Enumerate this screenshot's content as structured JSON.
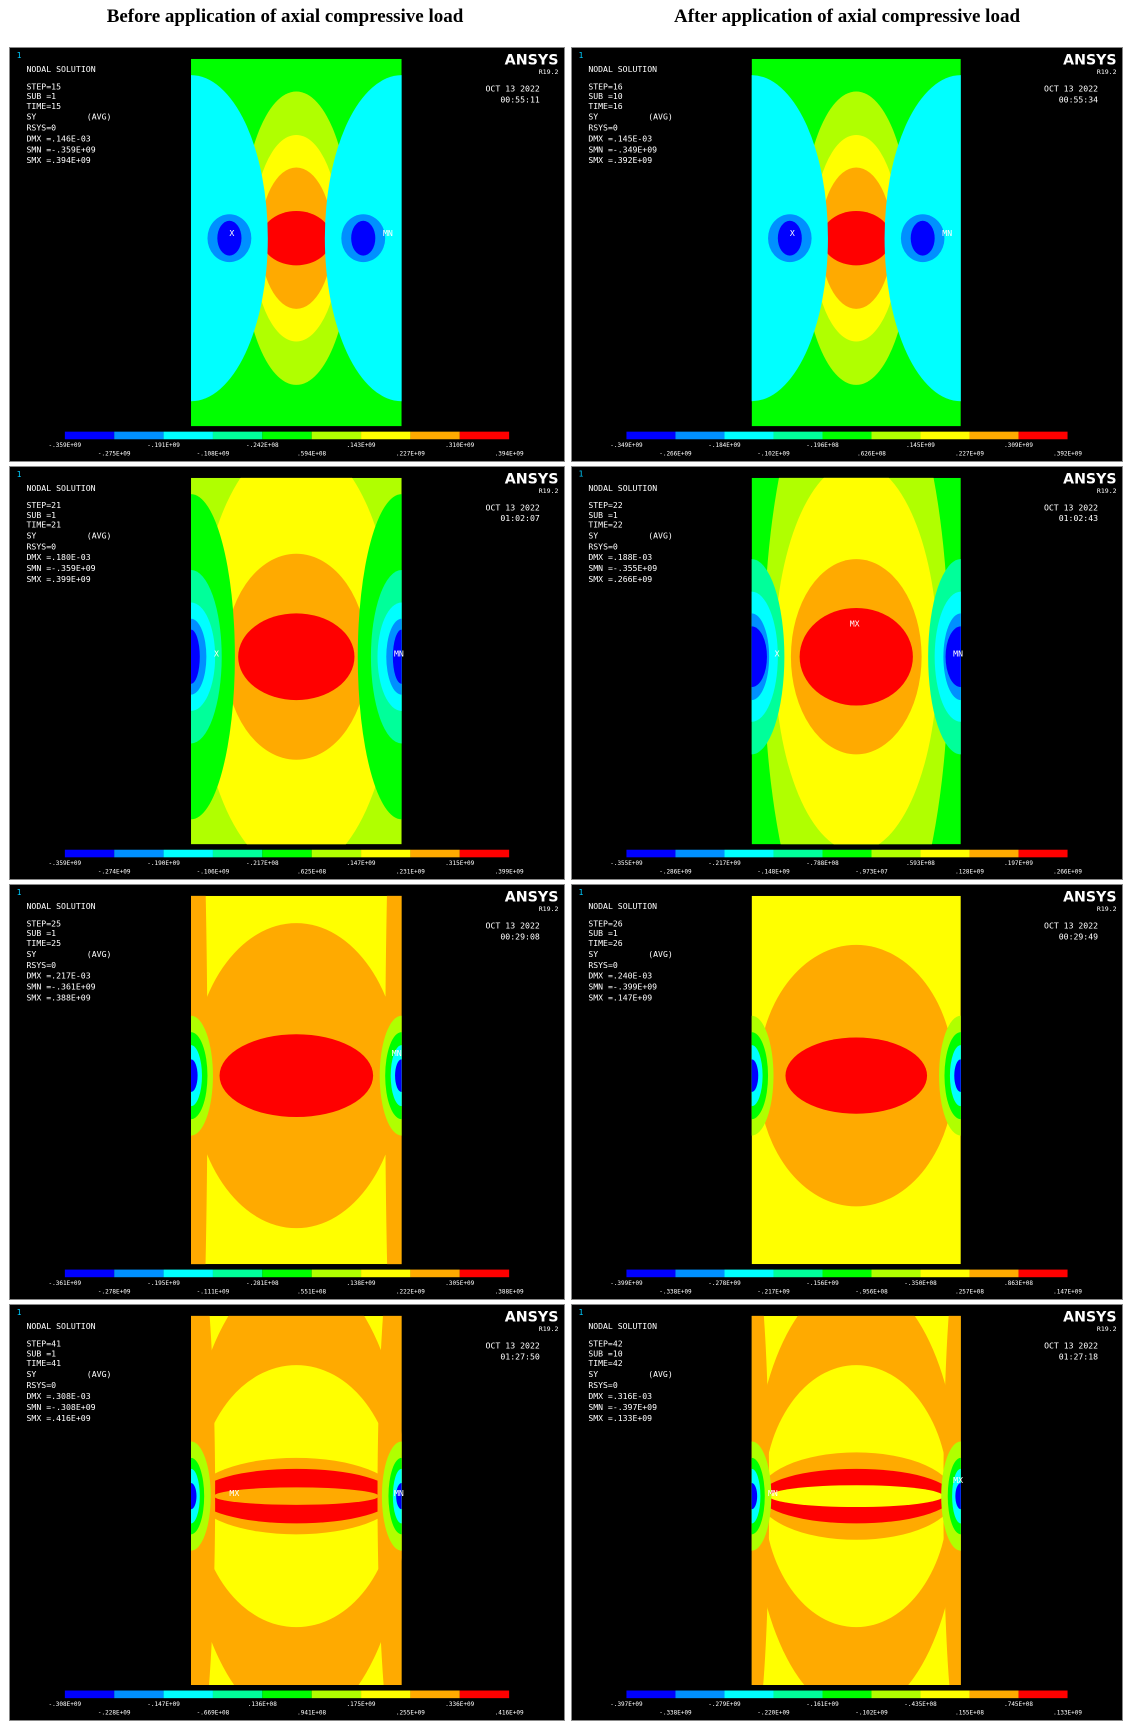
{
  "header": {
    "left_title": "Before application of axial compressive load",
    "right_title": "After application of axial compressive load"
  },
  "panels": [
    {
      "window_number": "1",
      "title": "NODAL SOLUTION",
      "step": "STEP=15",
      "sub": "SUB =1",
      "time": "TIME=15",
      "quantity": "SY",
      "averaging": "(AVG)",
      "rsys": "RSYS=0",
      "dmx": "DMX =.146E-03",
      "smn": "SMN =-.359E+09",
      "smx": "SMX =.394E+09",
      "brand": "ANSYS",
      "version": "R19.2",
      "date": "OCT 13 2022",
      "clock": "00:55:11",
      "markers": [
        "X",
        "MN"
      ],
      "legend": [
        "-.359E+09",
        "-.275E+09",
        "-.191E+09",
        "-.108E+09",
        "-.242E+08",
        ".594E+08",
        ".143E+09",
        ".227E+09",
        ".310E+09",
        ".394E+09"
      ]
    },
    {
      "window_number": "1",
      "title": "NODAL SOLUTION",
      "step": "STEP=16",
      "sub": "SUB =10",
      "time": "TIME=16",
      "quantity": "SY",
      "averaging": "(AVG)",
      "rsys": "RSYS=0",
      "dmx": "DMX =.145E-03",
      "smn": "SMN =-.349E+09",
      "smx": "SMX =.392E+09",
      "brand": "ANSYS",
      "version": "R19.2",
      "date": "OCT 13 2022",
      "clock": "00:55:34",
      "markers": [
        "X",
        "MN"
      ],
      "legend": [
        "-.349E+09",
        "-.266E+09",
        "-.184E+09",
        "-.102E+09",
        "-.196E+08",
        ".626E+08",
        ".145E+09",
        ".227E+09",
        ".309E+09",
        ".392E+09"
      ]
    },
    {
      "window_number": "1",
      "title": "NODAL SOLUTION",
      "step": "STEP=21",
      "sub": "SUB =1",
      "time": "TIME=21",
      "quantity": "SY",
      "averaging": "(AVG)",
      "rsys": "RSYS=0",
      "dmx": "DMX =.180E-03",
      "smn": "SMN =-.359E+09",
      "smx": "SMX =.399E+09",
      "brand": "ANSYS",
      "version": "R19.2",
      "date": "OCT 13 2022",
      "clock": "01:02:07",
      "markers": [
        "X",
        "MN"
      ],
      "legend": [
        "-.359E+09",
        "-.274E+09",
        "-.190E+09",
        "-.106E+09",
        "-.217E+08",
        ".625E+08",
        ".147E+09",
        ".231E+09",
        ".315E+09",
        ".399E+09"
      ]
    },
    {
      "window_number": "1",
      "title": "NODAL SOLUTION",
      "step": "STEP=22",
      "sub": "SUB =1",
      "time": "TIME=22",
      "quantity": "SY",
      "averaging": "(AVG)",
      "rsys": "RSYS=0",
      "dmx": "DMX =.188E-03",
      "smn": "SMN =-.355E+09",
      "smx": "SMX =.266E+09",
      "brand": "ANSYS",
      "version": "R19.2",
      "date": "OCT 13 2022",
      "clock": "01:02:43",
      "markers": [
        "X",
        "MX",
        "MN"
      ],
      "legend": [
        "-.355E+09",
        "-.286E+09",
        "-.217E+09",
        "-.148E+09",
        "-.788E+08",
        "-.973E+07",
        ".593E+08",
        ".128E+09",
        ".197E+09",
        ".266E+09"
      ]
    },
    {
      "window_number": "1",
      "title": "NODAL SOLUTION",
      "step": "STEP=25",
      "sub": "SUB =1",
      "time": "TIME=25",
      "quantity": "SY",
      "averaging": "(AVG)",
      "rsys": "RSYS=0",
      "dmx": "DMX =.217E-03",
      "smn": "SMN =-.361E+09",
      "smx": "SMX =.388E+09",
      "brand": "ANSYS",
      "version": "R19.2",
      "date": "OCT 13 2022",
      "clock": "00:29:08",
      "markers": [
        "MN"
      ],
      "legend": [
        "-.361E+09",
        "-.278E+09",
        "-.195E+09",
        "-.111E+09",
        "-.281E+08",
        ".551E+08",
        ".138E+09",
        ".222E+09",
        ".305E+09",
        ".388E+09"
      ]
    },
    {
      "window_number": "1",
      "title": "NODAL SOLUTION",
      "step": "STEP=26",
      "sub": "SUB =1",
      "time": "TIME=26",
      "quantity": "SY",
      "averaging": "(AVG)",
      "rsys": "RSYS=0",
      "dmx": "DMX =.240E-03",
      "smn": "SMN =-.399E+09",
      "smx": "SMX =.147E+09",
      "brand": "ANSYS",
      "version": "R19.2",
      "date": "OCT 13 2022",
      "clock": "00:29:49",
      "markers": [],
      "legend": [
        "-.399E+09",
        "-.338E+09",
        "-.278E+09",
        "-.217E+09",
        "-.156E+09",
        "-.956E+08",
        "-.350E+08",
        ".257E+08",
        ".863E+08",
        ".147E+09"
      ]
    },
    {
      "window_number": "1",
      "title": "NODAL SOLUTION",
      "step": "STEP=41",
      "sub": "SUB =1",
      "time": "TIME=41",
      "quantity": "SY",
      "averaging": "(AVG)",
      "rsys": "RSYS=0",
      "dmx": "DMX =.308E-03",
      "smn": "SMN =-.308E+09",
      "smx": "SMX =.416E+09",
      "brand": "ANSYS",
      "version": "R19.2",
      "date": "OCT 13 2022",
      "clock": "01:27:50",
      "markers": [
        "MX",
        "MN"
      ],
      "legend": [
        "-.308E+09",
        "-.228E+09",
        "-.147E+09",
        "-.669E+08",
        ".136E+08",
        ".941E+08",
        ".175E+09",
        ".255E+09",
        ".336E+09",
        ".416E+09"
      ]
    },
    {
      "window_number": "1",
      "title": "NODAL SOLUTION",
      "step": "STEP=42",
      "sub": "SUB =10",
      "time": "TIME=42",
      "quantity": "SY",
      "averaging": "(AVG)",
      "rsys": "RSYS=0",
      "dmx": "DMX =.316E-03",
      "smn": "SMN =-.397E+09",
      "smx": "SMX =.133E+09",
      "brand": "ANSYS",
      "version": "R19.2",
      "date": "OCT 13 2022",
      "clock": "01:27:18",
      "markers": [
        "MN",
        "MX"
      ],
      "legend": [
        "-.397E+09",
        "-.338E+09",
        "-.279E+09",
        "-.220E+09",
        "-.161E+09",
        "-.102E+09",
        "-.435E+08",
        ".155E+08",
        ".745E+08",
        ".133E+09"
      ]
    }
  ]
}
